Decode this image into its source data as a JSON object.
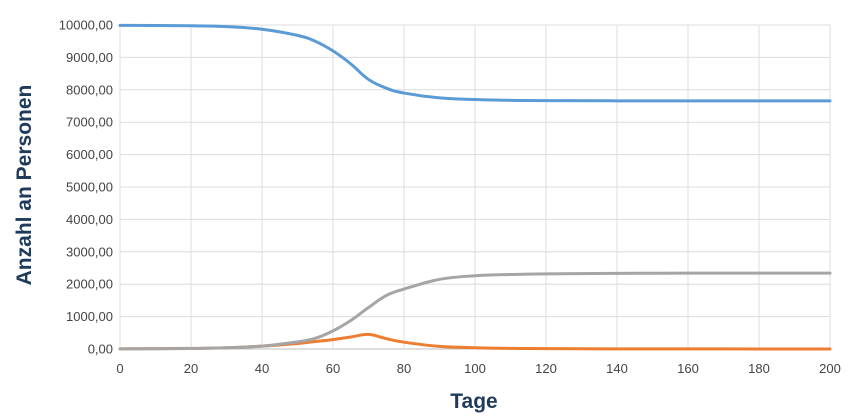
{
  "chart_data": {
    "type": "line",
    "title": "",
    "xlabel": "Tage",
    "ylabel": "Anzahl an Personen",
    "xlim": [
      0,
      200
    ],
    "ylim": [
      0,
      10000
    ],
    "xticks": [
      0,
      20,
      40,
      60,
      80,
      100,
      120,
      140,
      160,
      180,
      200
    ],
    "yticks": [
      "0,00",
      "1000,00",
      "2000,00",
      "3000,00",
      "4000,00",
      "5000,00",
      "6000,00",
      "7000,00",
      "8000,00",
      "9000,00",
      "10000,00"
    ],
    "grid": true,
    "legend": "none",
    "series": [
      {
        "color": "#5b9bd5",
        "x": [
          0,
          20,
          30,
          40,
          50,
          55,
          60,
          65,
          70,
          75,
          80,
          90,
          100,
          110,
          120,
          140,
          160,
          180,
          200
        ],
        "y": [
          9990,
          9975,
          9950,
          9870,
          9680,
          9500,
          9200,
          8800,
          8320,
          8050,
          7900,
          7750,
          7700,
          7675,
          7665,
          7660,
          7660,
          7660,
          7660
        ]
      },
      {
        "color": "#ed7d31",
        "x": [
          0,
          20,
          30,
          40,
          50,
          55,
          60,
          65,
          70,
          75,
          80,
          90,
          100,
          110,
          120,
          140,
          160,
          180,
          200
        ],
        "y": [
          5,
          20,
          40,
          90,
          170,
          230,
          290,
          370,
          450,
          320,
          210,
          80,
          40,
          20,
          10,
          5,
          3,
          2,
          2
        ]
      },
      {
        "color": "#a5a5a5",
        "x": [
          0,
          20,
          30,
          40,
          50,
          55,
          60,
          65,
          70,
          75,
          80,
          90,
          100,
          110,
          120,
          140,
          160,
          180,
          200
        ],
        "y": [
          5,
          15,
          40,
          90,
          220,
          330,
          560,
          880,
          1280,
          1650,
          1850,
          2150,
          2260,
          2300,
          2320,
          2335,
          2340,
          2340,
          2340
        ]
      }
    ]
  }
}
